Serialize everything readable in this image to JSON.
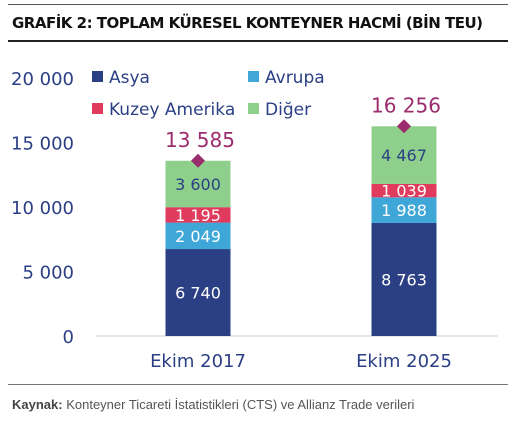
{
  "title": "GRAFİK 2: TOPLAM KÜRESEL KONTEYNER HACMİ (BİN TEU)",
  "source": {
    "label": "Kaynak:",
    "text": "Konteyner Ticareti İstatistikleri (CTS) ve Allianz Trade verileri"
  },
  "chart_data": {
    "type": "bar",
    "stacked": true,
    "categories": [
      "Ekim 2017",
      "Ekim 2025"
    ],
    "series": [
      {
        "name": "Asya",
        "color": "#2b3f85",
        "values": [
          6740,
          8763
        ],
        "labels": [
          "6 740",
          "8 763"
        ]
      },
      {
        "name": "Avrupa",
        "color": "#3fa6d8",
        "values": [
          2049,
          1988
        ],
        "labels": [
          "2 049",
          "1 988"
        ]
      },
      {
        "name": "Kuzey Amerika",
        "color": "#e03a5c",
        "values": [
          1195,
          1039
        ],
        "labels": [
          "1 195",
          "1 039"
        ]
      },
      {
        "name": "Diğer",
        "color": "#8fcf8c",
        "values": [
          3600,
          4467
        ],
        "labels": [
          "3 600",
          "4 467"
        ]
      }
    ],
    "totals": {
      "values": [
        13585,
        16256
      ],
      "labels": [
        "13 585",
        "16 256"
      ],
      "color": "#9b2c6e"
    },
    "yticks": [
      0,
      5000,
      10000,
      15000,
      20000
    ],
    "ytick_labels": [
      "0",
      "5 000",
      "10 000",
      "15 000",
      "20 000"
    ],
    "ylim": [
      0,
      20000
    ],
    "grid": false,
    "legend_position": "top-left"
  }
}
